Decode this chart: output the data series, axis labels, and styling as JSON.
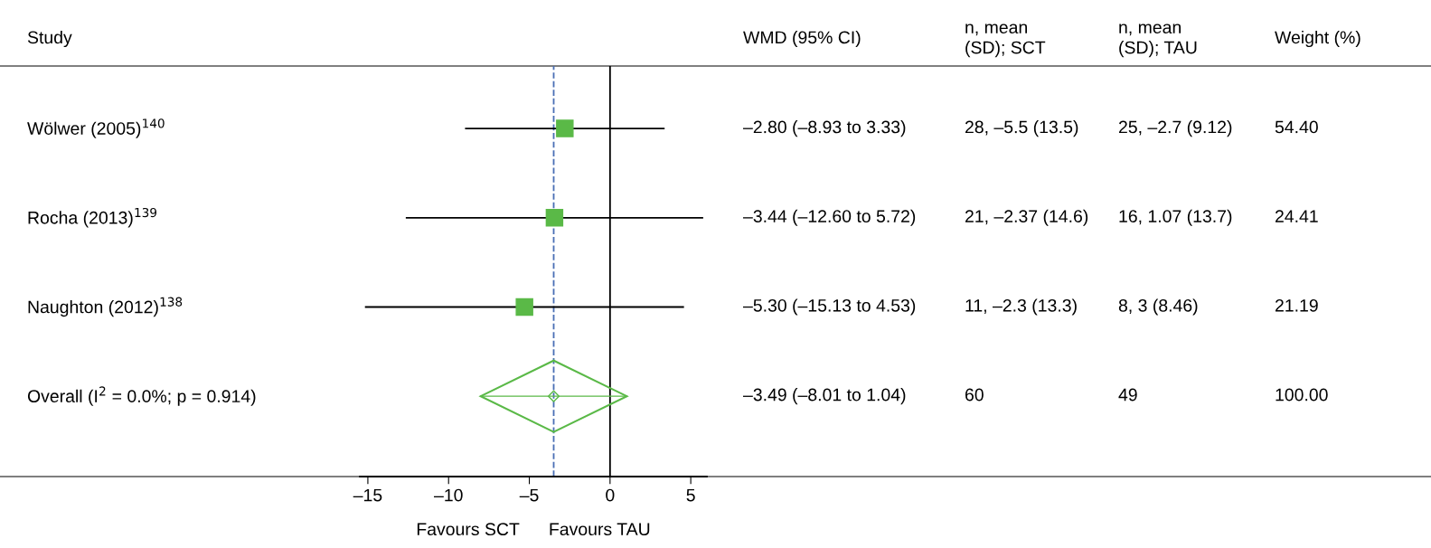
{
  "chart_data": {
    "type": "scatter",
    "orientation": "horizontal",
    "ylabel": "Study",
    "xlabel": "Favours SCT      Favours TAU",
    "categories": [
      "Wölwer (2005)$^{140}$",
      "Rocha (2013)$^{139}$",
      "Naughton (2012)$^{138}$",
      "Overall (I$^{2}$ = 0.0%; p = 0.914)"
    ],
    "series": [
      {
        "marker": "square",
        "color": "#5ab947",
        "values": [
          -2.8,
          -3.44,
          -5.3,
          null
        ],
        "errors": [
          [
            -8.93,
            3.33
          ],
          [
            -12.6,
            5.72
          ],
          [
            -15.13,
            4.53
          ],
          null
        ]
      },
      {
        "marker": "diamond",
        "color": "#5ab947",
        "values": [
          null,
          null,
          null,
          -3.49
        ],
        "errors": [
          null,
          null,
          null,
          [
            -8.01,
            1.04
          ]
        ]
      }
    ],
    "xlim": [
      -15.5,
      6
    ],
    "xticks": [
      {
        "value": -15,
        "label": "–15"
      },
      {
        "value": -10,
        "label": "–10"
      },
      {
        "value": -5,
        "label": "–5"
      },
      0,
      5
    ],
    "ref_lines": [
      {
        "axis": "x",
        "value": 0,
        "color": "#000000",
        "line_style": "solid"
      },
      {
        "axis": "x",
        "value": -3.49,
        "color": "#4a6fb5",
        "line_style": "dashed"
      }
    ],
    "annotations": [
      "WMD (95% CI)",
      "n, mean\n(SD); SCT",
      "n, mean\n(SD); TAU",
      "Weight (%)",
      "–2.80 (–8.93 to 3.33)",
      "28, –5.5 (13.5)",
      "25, –2.7 (9.12)",
      "54.40",
      "–3.44 (–12.60 to 5.72)",
      "21, –2.37 (14.6)",
      "16, 1.07 (13.7)",
      "24.41",
      "–5.30 (–15.13 to 4.53)",
      "11, –2.3 (13.3)",
      "8, 3 (8.46)",
      "21.19",
      "–3.49 (–8.01 to 1.04)",
      "60",
      "49",
      "100.00"
    ]
  }
}
